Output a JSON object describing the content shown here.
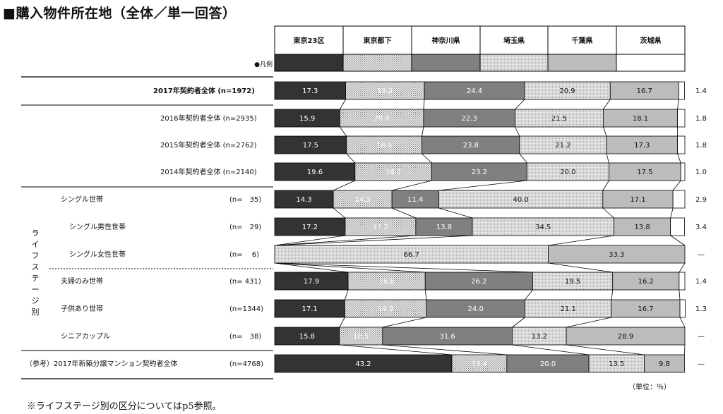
{
  "title": "■購入物件所在地（全体／単一回答）",
  "legend_label": "●凡例",
  "unit_note": "（単位：％）",
  "footnote": "※ライフステージ別の区分についてはp5参照。",
  "group_label": "ライフステージ別",
  "colors": {
    "tokyo23": "#333333",
    "tokyo_other": "#c8c8c8",
    "kanagawa": "#808080",
    "saitama": "#d0d0d0",
    "chiba": "#bcbcbc",
    "ibaraki": "#ffffff",
    "border": "#000000",
    "label_light": "#ffffff",
    "label_dark": "#111111"
  },
  "chart_data": {
    "type": "bar",
    "orientation": "horizontal",
    "stacked": true,
    "unit": "%",
    "categories_legend": [
      "東京23区",
      "東京都下",
      "神奈川県",
      "埼玉県",
      "千葉県",
      "茨城県"
    ],
    "rows": [
      {
        "label": "2017年契約者全体",
        "n": "(n=1972)",
        "values": [
          17.3,
          19.2,
          24.4,
          20.9,
          16.7,
          1.4
        ],
        "labels": [
          "17.3",
          "19.2",
          "24.4",
          "20.9",
          "16.7",
          "1.4"
        ]
      },
      {
        "label": "2016年契約者全体",
        "n": "(n=2935)",
        "values": [
          15.9,
          20.4,
          22.3,
          21.5,
          18.1,
          1.8
        ],
        "labels": [
          "15.9",
          "20.4",
          "22.3",
          "21.5",
          "18.1",
          "1.8"
        ]
      },
      {
        "label": "2015年契約者全体",
        "n": "(n=2762)",
        "values": [
          17.5,
          18.4,
          23.8,
          21.2,
          17.3,
          1.8
        ],
        "labels": [
          "17.5",
          "18.4",
          "23.8",
          "21.2",
          "17.3",
          "1.8"
        ]
      },
      {
        "label": "2014年契約者全体",
        "n": "(n=2140)",
        "values": [
          19.6,
          18.7,
          23.2,
          20.0,
          17.5,
          1.0
        ],
        "labels": [
          "19.6",
          "18.7",
          "23.2",
          "20.0",
          "17.5",
          "1.0"
        ]
      },
      {
        "label": "シングル世帯",
        "n": "(n=　35)",
        "values": [
          14.3,
          14.3,
          11.4,
          40.0,
          17.1,
          2.9
        ],
        "labels": [
          "14.3",
          "14.3",
          "11.4",
          "40.0",
          "17.1",
          "2.9"
        ]
      },
      {
        "label": "シングル男性世帯",
        "n": "(n=　29)",
        "values": [
          17.2,
          17.2,
          13.8,
          34.5,
          13.8,
          3.4
        ],
        "labels": [
          "17.2",
          "17.2",
          "13.8",
          "34.5",
          "13.8",
          "3.4"
        ]
      },
      {
        "label": "シングル女性世帯",
        "n": "(n=　 6)",
        "values": [
          0,
          0,
          0,
          66.7,
          33.3,
          0
        ],
        "labels": [
          "",
          "",
          "",
          "66.7",
          "33.3",
          "—"
        ]
      },
      {
        "label": "夫婦のみ世帯",
        "n": "(n= 431)",
        "values": [
          17.9,
          18.8,
          26.2,
          19.5,
          16.2,
          1.4
        ],
        "labels": [
          "17.9",
          "18.8",
          "26.2",
          "19.5",
          "16.2",
          "1.4"
        ]
      },
      {
        "label": "子供あり世帯",
        "n": "(n=1344)",
        "values": [
          17.1,
          19.9,
          24.0,
          21.1,
          16.7,
          1.3
        ],
        "labels": [
          "17.1",
          "19.9",
          "24.0",
          "21.1",
          "16.7",
          "1.3"
        ]
      },
      {
        "label": "シニアカップル",
        "n": "(n=　38)",
        "values": [
          15.8,
          10.5,
          31.6,
          13.2,
          28.9,
          0
        ],
        "labels": [
          "15.8",
          "10.5",
          "31.6",
          "13.2",
          "28.9",
          "—"
        ]
      },
      {
        "label": "（参考）2017年新築分譲マンション契約者全体",
        "n": "(n=4768)",
        "values": [
          43.2,
          13.4,
          20.0,
          13.5,
          9.8,
          0
        ],
        "labels": [
          "43.2",
          "13.4",
          "20.0",
          "13.5",
          "9.8",
          "—"
        ]
      }
    ]
  }
}
